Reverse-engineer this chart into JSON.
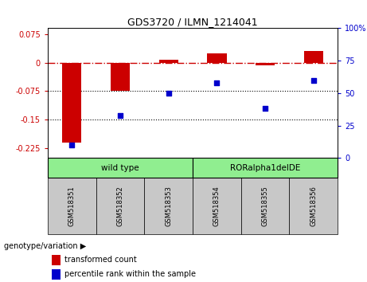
{
  "title": "GDS3720 / ILMN_1214041",
  "samples": [
    "GSM518351",
    "GSM518352",
    "GSM518353",
    "GSM518354",
    "GSM518355",
    "GSM518356"
  ],
  "red_values": [
    -0.21,
    -0.075,
    0.008,
    0.025,
    -0.008,
    0.03
  ],
  "blue_values_pct": [
    10,
    33,
    50,
    58,
    38,
    60
  ],
  "ylim_left": [
    -0.25,
    0.09
  ],
  "ylim_right": [
    0,
    100
  ],
  "yticks_left": [
    0.075,
    0,
    -0.075,
    -0.15,
    -0.225
  ],
  "yticks_right": [
    100,
    75,
    50,
    25,
    0
  ],
  "hlines": [
    -0.075,
    -0.15
  ],
  "group1_label": "wild type",
  "group2_label": "RORalpha1delDE",
  "group_color": "#90EE90",
  "genotype_label": "genotype/variation",
  "legend_red": "transformed count",
  "legend_blue": "percentile rank within the sample",
  "bar_color": "#CC0000",
  "dot_color": "#0000CC",
  "bg_color": "#FFFFFF",
  "tick_color_left": "#CC0000",
  "tick_color_right": "#0000CC",
  "sample_box_color": "#C8C8C8"
}
